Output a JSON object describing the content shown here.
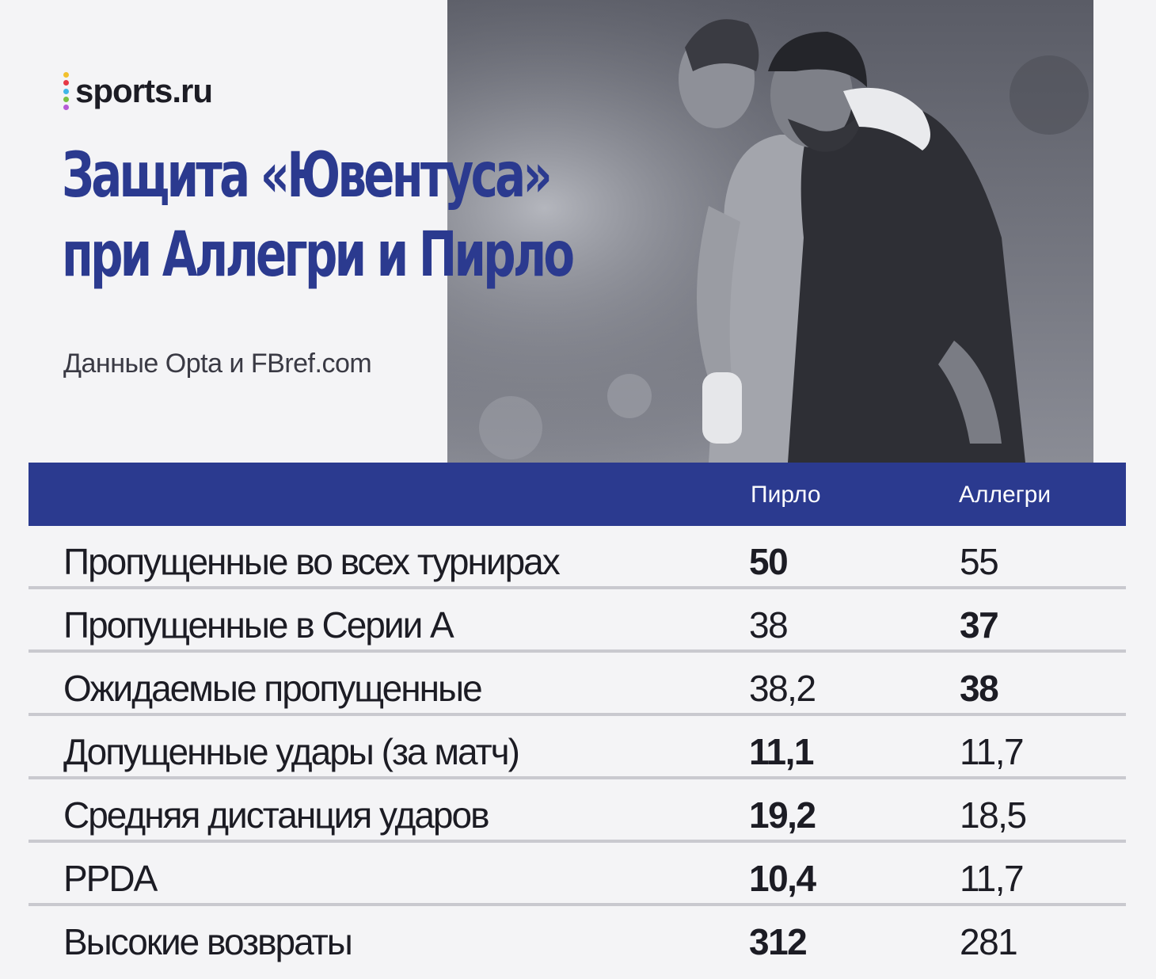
{
  "brand": {
    "logo_text": "sports.ru",
    "dot_colors": [
      "#f2c12e",
      "#e63946",
      "#3fb6e8",
      "#7ac143",
      "#b65bd6"
    ]
  },
  "header": {
    "title_line1": "Защита «Ювентуса»",
    "title_line2": "при Аллегри и Пирло",
    "source": "Данные Opta и FBref.com"
  },
  "colors": {
    "accent": "#2b3a8f",
    "text": "#1c1c24",
    "background": "#f4f4f6",
    "divider": "#c9c9cf"
  },
  "chart_data": {
    "type": "table",
    "columns": [
      "Пирло",
      "Аллегри"
    ],
    "rows": [
      {
        "label": "Пропущенные во всех турнирах",
        "values": [
          "50",
          "55"
        ],
        "bold": [
          true,
          false
        ]
      },
      {
        "label": "Пропущенные в Серии А",
        "values": [
          "38",
          "37"
        ],
        "bold": [
          false,
          true
        ]
      },
      {
        "label": "Ожидаемые пропущенные",
        "values": [
          "38,2",
          "38"
        ],
        "bold": [
          false,
          true
        ]
      },
      {
        "label": "Допущенные удары (за матч)",
        "values": [
          "11,1",
          "11,7"
        ],
        "bold": [
          true,
          false
        ]
      },
      {
        "label": "Средняя дистанция ударов",
        "values": [
          "19,2",
          "18,5"
        ],
        "bold": [
          true,
          false
        ]
      },
      {
        "label": "PPDA",
        "values": [
          "10,4",
          "11,7"
        ],
        "bold": [
          true,
          false
        ]
      },
      {
        "label": "Высокие возвраты",
        "values": [
          "312",
          "281"
        ],
        "bold": [
          true,
          false
        ]
      }
    ]
  }
}
